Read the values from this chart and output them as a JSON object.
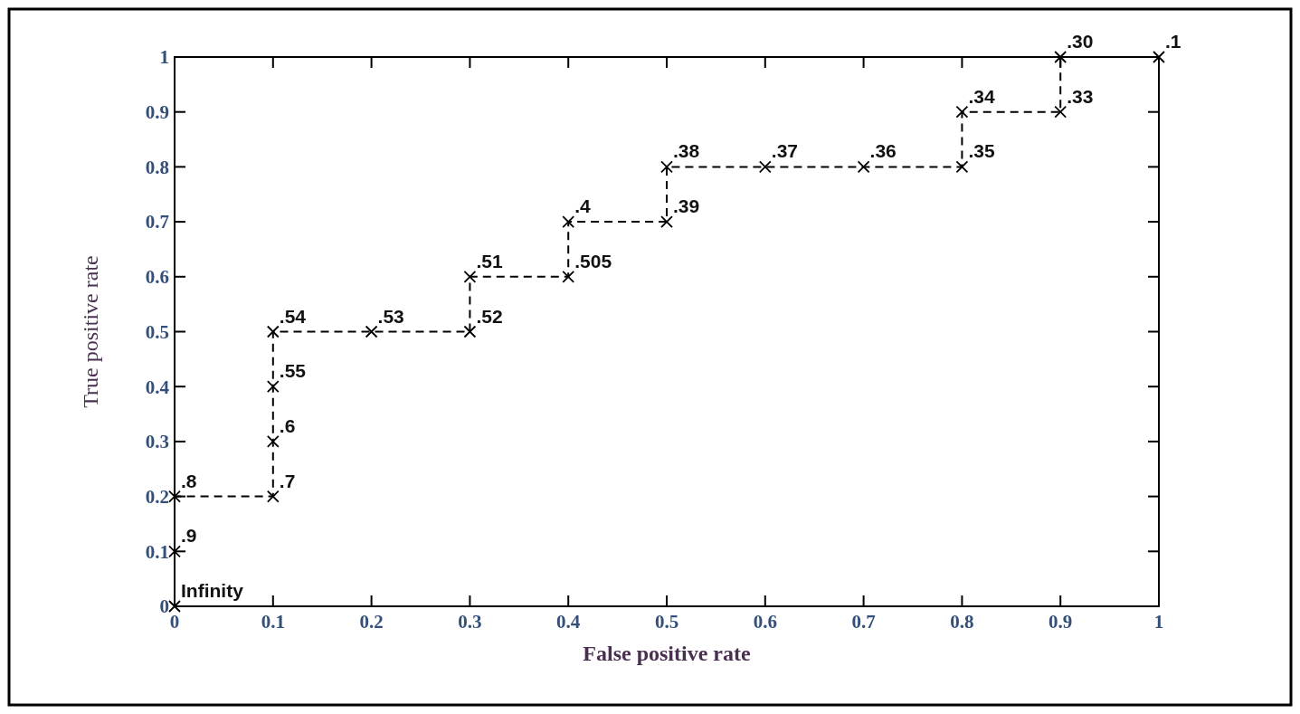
{
  "chart_data": {
    "type": "line",
    "xlabel": "False positive rate",
    "ylabel": "True positive rate",
    "x": [
      0,
      0,
      0,
      0.1,
      0.1,
      0.1,
      0.1,
      0.2,
      0.3,
      0.3,
      0.4,
      0.4,
      0.5,
      0.5,
      0.6,
      0.7,
      0.8,
      0.8,
      0.9,
      0.9,
      1
    ],
    "series": [
      {
        "color": "#000000",
        "values": [
          0,
          0.1,
          0.2,
          0.2,
          0.3,
          0.4,
          0.5,
          0.5,
          0.5,
          0.6,
          0.6,
          0.7,
          0.7,
          0.8,
          0.8,
          0.8,
          0.8,
          0.9,
          0.9,
          1,
          1
        ]
      }
    ],
    "xlim": [
      0,
      1
    ],
    "ylim": [
      0,
      1
    ],
    "xticks": [
      0,
      0.1,
      0.2,
      0.3,
      0.4,
      0.5,
      0.6,
      0.7,
      0.8,
      0.9,
      1
    ],
    "yticks": [
      0,
      0.1,
      0.2,
      0.3,
      0.4,
      0.5,
      0.6,
      0.7,
      0.8,
      0.9,
      1
    ],
    "grid": false,
    "marker": "cross",
    "line_style": "dashed",
    "annotations": [
      {
        "text": "Infinity",
        "x": 0,
        "y": 0
      },
      {
        "text": ".9",
        "x": 0,
        "y": 0.1
      },
      {
        "text": ".8",
        "x": 0,
        "y": 0.2
      },
      {
        "text": ".7",
        "x": 0.1,
        "y": 0.2
      },
      {
        "text": ".6",
        "x": 0.1,
        "y": 0.3
      },
      {
        "text": ".55",
        "x": 0.1,
        "y": 0.4
      },
      {
        "text": ".54",
        "x": 0.1,
        "y": 0.5
      },
      {
        "text": ".53",
        "x": 0.2,
        "y": 0.5
      },
      {
        "text": ".52",
        "x": 0.3,
        "y": 0.5
      },
      {
        "text": ".51",
        "x": 0.3,
        "y": 0.6
      },
      {
        "text": ".505",
        "x": 0.4,
        "y": 0.6
      },
      {
        "text": ".4",
        "x": 0.4,
        "y": 0.7
      },
      {
        "text": ".39",
        "x": 0.5,
        "y": 0.7
      },
      {
        "text": ".38",
        "x": 0.5,
        "y": 0.8
      },
      {
        "text": ".37",
        "x": 0.6,
        "y": 0.8
      },
      {
        "text": ".36",
        "x": 0.7,
        "y": 0.8
      },
      {
        "text": ".35",
        "x": 0.8,
        "y": 0.8
      },
      {
        "text": ".34",
        "x": 0.8,
        "y": 0.9
      },
      {
        "text": ".33",
        "x": 0.9,
        "y": 0.9
      },
      {
        "text": ".30",
        "x": 0.9,
        "y": 1
      },
      {
        "text": ".1",
        "x": 1,
        "y": 1
      }
    ]
  }
}
